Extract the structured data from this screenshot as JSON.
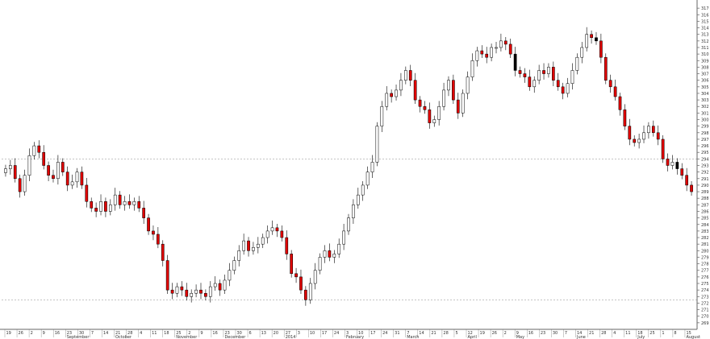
{
  "chart_data": {
    "type": "candlestick",
    "ylim": [
      268,
      318
    ],
    "y_ticks": [
      269,
      270,
      271,
      272,
      273,
      274,
      275,
      276,
      277,
      278,
      279,
      280,
      281,
      282,
      283,
      284,
      285,
      286,
      287,
      288,
      289,
      290,
      291,
      292,
      293,
      294,
      295,
      296,
      297,
      298,
      299,
      300,
      301,
      302,
      303,
      304,
      305,
      306,
      307,
      308,
      309,
      310,
      311,
      312,
      313,
      314,
      315,
      316,
      317
    ],
    "reference_lines": [
      294,
      272.5
    ],
    "x_day_labels": [
      "19",
      "26",
      "2",
      "9",
      "16",
      "23",
      "30",
      "7",
      "14",
      "21",
      "28",
      "4",
      "11",
      "18",
      "25",
      "2",
      "9",
      "16",
      "23",
      "30",
      "6",
      "13",
      "20",
      "27",
      "3",
      "10",
      "17",
      "24",
      "3",
      "10",
      "17",
      "24",
      "31",
      "7",
      "14",
      "21",
      "28",
      "5",
      "12",
      "19",
      "26",
      "2",
      "9",
      "16",
      "23",
      "30",
      "7",
      "14",
      "21",
      "28",
      "4",
      "11",
      "18",
      "25",
      "1",
      "8",
      "15"
    ],
    "x_month_labels": [
      "September",
      "October",
      "November",
      "December",
      "2014",
      "February",
      "March",
      "April",
      "May",
      "June",
      "July",
      "August"
    ],
    "colors": {
      "up_body": "#ffffff",
      "down_body": "#e00000",
      "doji_black": "#000000",
      "outline": "#000000",
      "reference_line": "#b0b0b0",
      "axis": "#666666"
    },
    "closes": [
      292.5,
      293.0,
      291.0,
      289.0,
      291.5,
      294.5,
      296.0,
      295.0,
      293.0,
      291.5,
      291.0,
      293.5,
      292.0,
      290.0,
      290.5,
      292.0,
      290.0,
      287.5,
      286.5,
      286.0,
      287.5,
      286.0,
      287.0,
      288.5,
      287.0,
      287.5,
      287.0,
      287.5,
      286.5,
      285.0,
      283.0,
      282.5,
      281.0,
      278.5,
      274.0,
      273.5,
      274.5,
      274.0,
      273.0,
      273.5,
      274.0,
      273.5,
      273.0,
      274.5,
      275.0,
      274.0,
      275.5,
      277.0,
      278.5,
      280.0,
      281.5,
      280.0,
      280.5,
      281.0,
      282.0,
      283.0,
      283.5,
      283.0,
      282.0,
      279.5,
      276.5,
      276.0,
      274.0,
      272.5,
      275.0,
      277.0,
      279.0,
      280.0,
      279.0,
      279.5,
      281.0,
      283.0,
      285.0,
      287.0,
      288.5,
      290.0,
      292.0,
      293.5,
      299.0,
      302.0,
      304.0,
      303.5,
      304.5,
      306.0,
      307.5,
      306.0,
      303.0,
      302.0,
      301.5,
      299.5,
      300.0,
      302.0,
      304.5,
      306.0,
      303.0,
      301.0,
      304.0,
      306.5,
      309.0,
      310.5,
      310.0,
      309.5,
      311.0,
      311.0,
      312.0,
      311.5,
      310.0,
      307.5,
      307.0,
      306.5,
      305.0,
      306.0,
      307.5,
      307.0,
      308.0,
      306.0,
      305.0,
      304.0,
      305.5,
      307.5,
      309.5,
      311.0,
      313.0,
      312.5,
      312.0,
      309.5,
      306.0,
      305.0,
      303.5,
      301.5,
      299.0,
      297.0,
      296.5,
      297.0,
      298.0,
      299.0,
      298.0,
      297.0,
      294.0,
      293.0,
      293.5,
      292.5,
      291.5,
      290.0,
      289.0
    ]
  }
}
